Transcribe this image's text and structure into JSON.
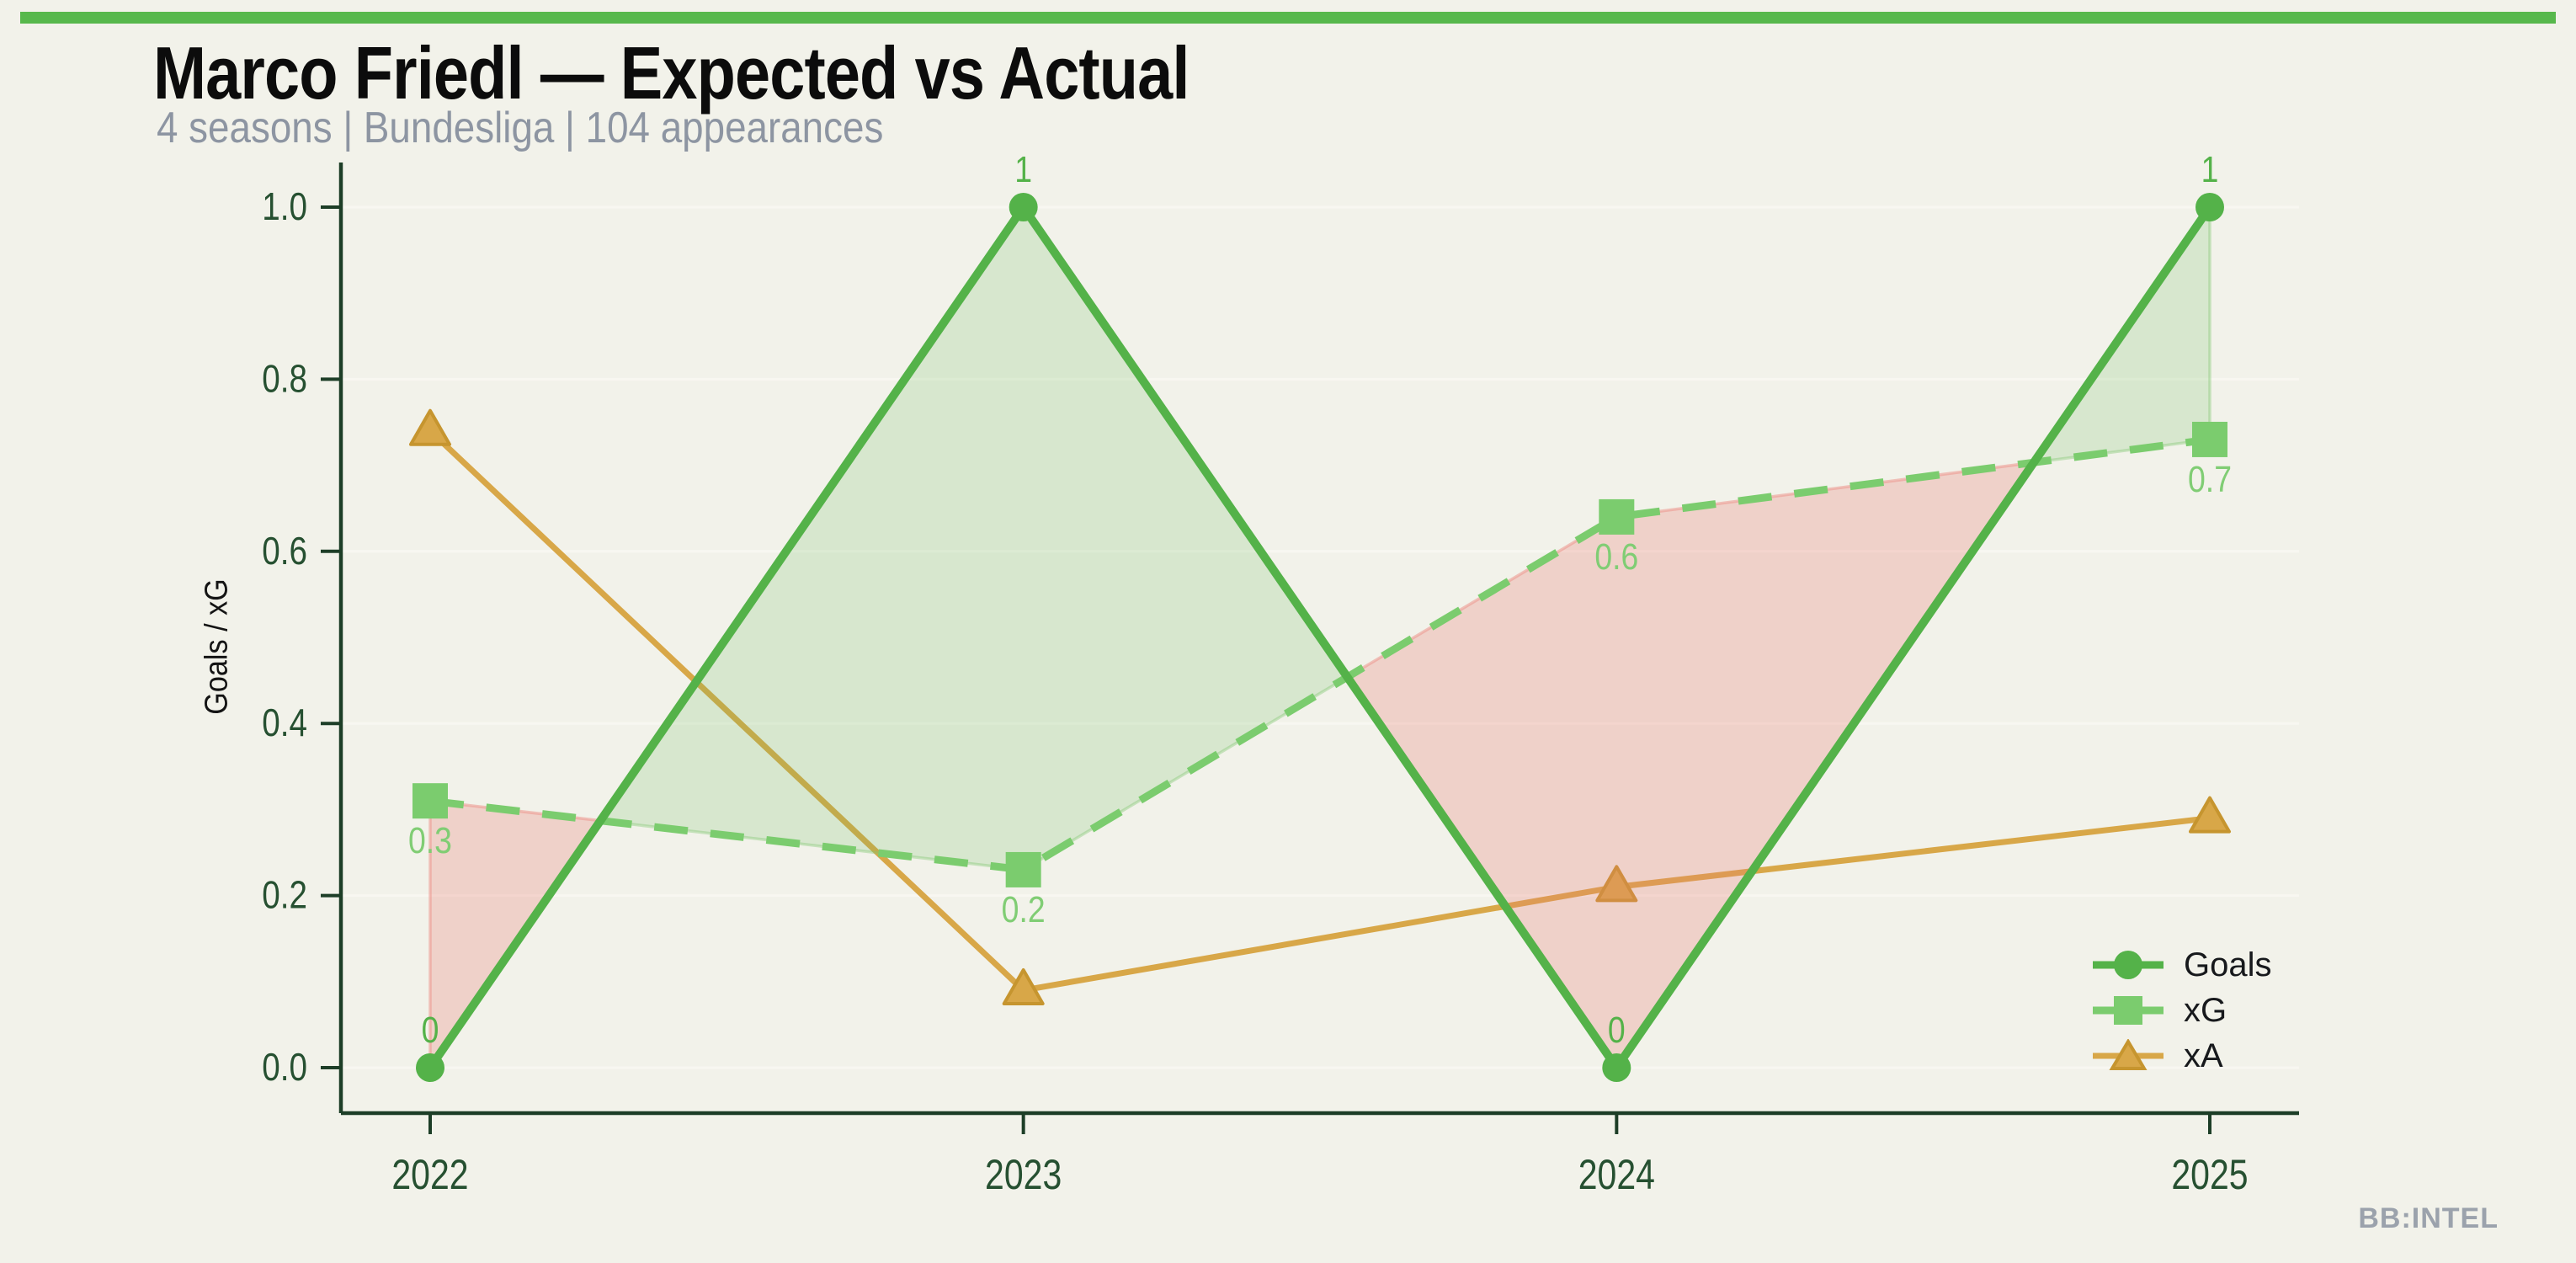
{
  "page": {
    "background": "#f2f2ea",
    "accent_bar_color": "#57b84c",
    "watermark": "BB:INTEL",
    "watermark_color": "#9ba2ac"
  },
  "header": {
    "title": "Marco Friedl — Expected vs Actual",
    "title_color": "#0c0c0c",
    "subtitle": "4 seasons | Bundesliga | 104 appearances",
    "subtitle_color": "#8d95a2"
  },
  "chart_data": {
    "type": "line",
    "title": "Marco Friedl — Expected vs Actual",
    "x_categories": [
      "2022",
      "2023",
      "2024",
      "2025"
    ],
    "ylabel": "Goals / xG",
    "ylim": [
      0.0,
      1.0
    ],
    "ytick_labels": [
      "0.0",
      "0.2",
      "0.4",
      "0.6",
      "0.8",
      "1.0"
    ],
    "ytick_values": [
      0,
      0.2,
      0.4,
      0.6,
      0.8,
      1.0
    ],
    "grid": "horizontal",
    "legend_position": "lower right",
    "series": [
      {
        "name": "Goals",
        "marker": "circle",
        "line": "solid",
        "color": "#54b249",
        "values": [
          0,
          1,
          0,
          1
        ],
        "point_labels": [
          "0",
          "1",
          "0",
          "1"
        ],
        "label_color": "#54b249",
        "label_side": "above"
      },
      {
        "name": "xG",
        "marker": "square",
        "line": "dashed",
        "color": "#7bcc6e",
        "values": [
          0.31,
          0.23,
          0.64,
          0.73
        ],
        "point_labels": [
          "0.3",
          "0.2",
          "0.6",
          "0.7"
        ],
        "label_color": "#80cd74",
        "label_side": "below"
      },
      {
        "name": "xA",
        "marker": "triangle",
        "line": "solid",
        "color": "#d8a748",
        "values": [
          0.74,
          0.09,
          0.21,
          0.29
        ],
        "point_labels": [
          "",
          "",
          "",
          ""
        ],
        "label_color": "#d8a748",
        "label_side": "below"
      }
    ],
    "marker_edge_triangle": "#c6952f",
    "fill_between": {
      "upper": "Goals",
      "lower": "xG",
      "positive_fill": "rgba(108,190,93,0.20)",
      "positive_edge": "rgba(130,200,115,0.40)",
      "negative_fill": "rgba(232,126,115,0.28)",
      "negative_edge": "rgba(236,150,140,0.55)"
    },
    "axis": {
      "spine_color": "#1d3e27",
      "tick_label_color": "#265031",
      "grid_color": "#f8f7f1"
    }
  }
}
